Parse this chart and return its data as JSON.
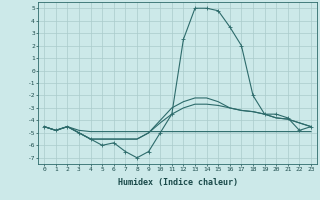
{
  "xlabel": "Humidex (Indice chaleur)",
  "xlim": [
    -0.5,
    23.5
  ],
  "ylim": [
    -7.5,
    5.5
  ],
  "yticks": [
    5,
    4,
    3,
    2,
    1,
    0,
    -1,
    -2,
    -3,
    -4,
    -5,
    -6,
    -7
  ],
  "xticks": [
    0,
    1,
    2,
    3,
    4,
    5,
    6,
    7,
    8,
    9,
    10,
    11,
    12,
    13,
    14,
    15,
    16,
    17,
    18,
    19,
    20,
    21,
    22,
    23
  ],
  "bg_color": "#cce9e9",
  "grid_color": "#aacccc",
  "line_color": "#2d6b6b",
  "line1": [
    -4.5,
    -4.8,
    -4.5,
    -5.0,
    -5.5,
    -6.0,
    -5.8,
    -6.5,
    -7.0,
    -6.5,
    -5.0,
    -3.5,
    2.5,
    5.0,
    5.0,
    4.8,
    3.5,
    2.0,
    -2.0,
    -3.5,
    -3.5,
    -3.8,
    -4.8,
    -4.5
  ],
  "line2": [
    -4.5,
    -4.8,
    -4.5,
    -4.8,
    -4.9,
    -4.9,
    -4.9,
    -4.9,
    -4.9,
    -4.9,
    -4.9,
    -4.9,
    -4.9,
    -4.9,
    -4.9,
    -4.9,
    -4.9,
    -4.9,
    -4.9,
    -4.9,
    -4.9,
    -4.9,
    -4.9,
    -4.9
  ],
  "line3": [
    -4.5,
    -4.8,
    -4.5,
    -5.0,
    -5.5,
    -5.5,
    -5.5,
    -5.5,
    -5.5,
    -5.0,
    -4.0,
    -3.0,
    -2.5,
    -2.2,
    -2.2,
    -2.5,
    -3.0,
    -3.2,
    -3.3,
    -3.5,
    -3.8,
    -3.9,
    -4.2,
    -4.5
  ],
  "line4": [
    -4.5,
    -4.8,
    -4.5,
    -5.0,
    -5.5,
    -5.5,
    -5.5,
    -5.5,
    -5.5,
    -5.0,
    -4.2,
    -3.5,
    -3.0,
    -2.7,
    -2.7,
    -2.8,
    -3.0,
    -3.2,
    -3.3,
    -3.5,
    -3.8,
    -3.9,
    -4.2,
    -4.5
  ]
}
